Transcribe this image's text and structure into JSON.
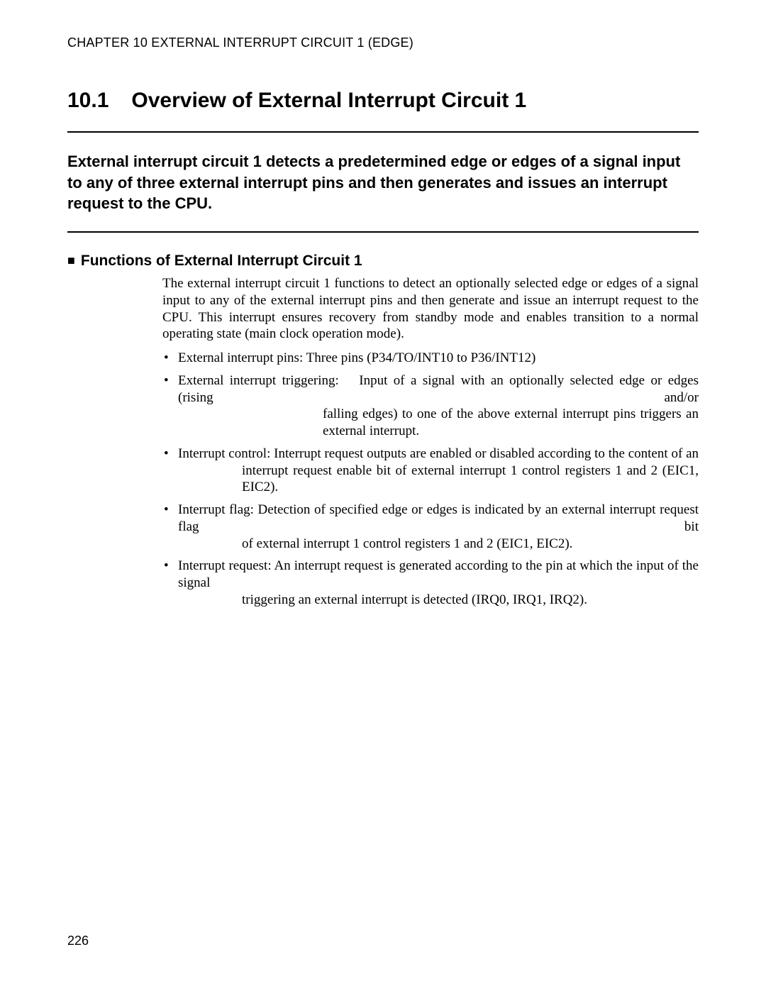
{
  "header": {
    "chapter_line": "CHAPTER 10  EXTERNAL INTERRUPT CIRCUIT 1 (EDGE)"
  },
  "section": {
    "number": "10.1",
    "title": "Overview of External Interrupt Circuit 1"
  },
  "lead": "External interrupt circuit 1 detects a predetermined edge or edges of a signal input to any of three external interrupt pins and then generates and issues an interrupt request to the CPU.",
  "subheading": "Functions of External Interrupt Circuit 1",
  "intro_para": "The external interrupt circuit 1 functions to detect an optionally selected edge or edges of a signal input to any of the external interrupt pins and then generate and issue an interrupt request to the CPU. This interrupt ensures recovery from standby mode and enables transition to a normal operating state (main clock operation mode).",
  "bullets": {
    "b1": "External interrupt pins: Three pins (P34/TO/INT10 to P36/INT12)",
    "b2_line1": "External interrupt triggering:  Input of a signal with an optionally selected edge or edges (rising and/or",
    "b2_rest": "falling edges) to one of the above external interrupt pins triggers an external interrupt.",
    "b3_line1": "Interrupt control: Interrupt request outputs are enabled or disabled according to the content of an",
    "b3_rest": "interrupt request enable bit of external interrupt 1 control registers 1 and 2 (EIC1, EIC2).",
    "b4_line1": "Interrupt flag: Detection of specified edge or edges is indicated by an external interrupt request flag bit",
    "b4_rest": "of external interrupt 1 control registers 1 and 2 (EIC1, EIC2).",
    "b5_line1": "Interrupt request: An interrupt request is generated according to the pin at which the input of the signal",
    "b5_rest": "triggering an external interrupt is detected (IRQ0, IRQ1, IRQ2)."
  },
  "page_number": "226"
}
